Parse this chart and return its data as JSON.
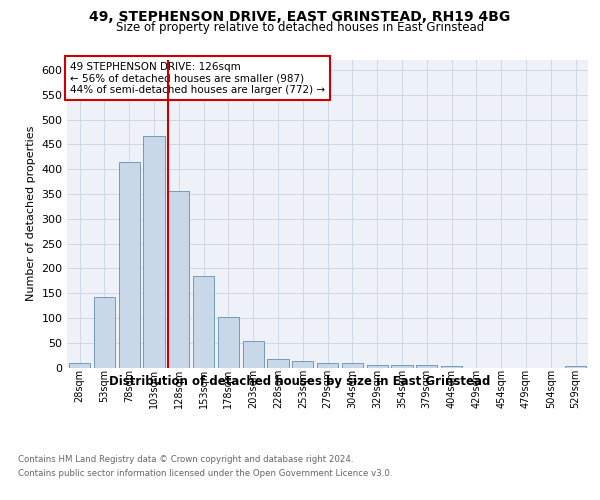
{
  "title": "49, STEPHENSON DRIVE, EAST GRINSTEAD, RH19 4BG",
  "subtitle": "Size of property relative to detached houses in East Grinstead",
  "xlabel": "Distribution of detached houses by size in East Grinstead",
  "ylabel": "Number of detached properties",
  "footnote1": "Contains HM Land Registry data © Crown copyright and database right 2024.",
  "footnote2": "Contains public sector information licensed under the Open Government Licence v3.0.",
  "bar_labels": [
    "28sqm",
    "53sqm",
    "78sqm",
    "103sqm",
    "128sqm",
    "153sqm",
    "178sqm",
    "203sqm",
    "228sqm",
    "253sqm",
    "279sqm",
    "304sqm",
    "329sqm",
    "354sqm",
    "379sqm",
    "404sqm",
    "429sqm",
    "454sqm",
    "479sqm",
    "504sqm",
    "529sqm"
  ],
  "bar_values": [
    9,
    143,
    415,
    467,
    355,
    185,
    102,
    54,
    18,
    14,
    10,
    9,
    5,
    5,
    5,
    4,
    0,
    0,
    0,
    0,
    4
  ],
  "bar_color": "#c8d8e8",
  "bar_edge_color": "#6090b0",
  "vline_color": "#cc0000",
  "annotation_title": "49 STEPHENSON DRIVE: 126sqm",
  "annotation_line1": "← 56% of detached houses are smaller (987)",
  "annotation_line2": "44% of semi-detached houses are larger (772) →",
  "annotation_box_color": "#cc0000",
  "ylim": [
    0,
    620
  ],
  "yticks": [
    0,
    50,
    100,
    150,
    200,
    250,
    300,
    350,
    400,
    450,
    500,
    550,
    600
  ],
  "grid_color": "#d0d8e8",
  "background_color": "#eef2f8"
}
